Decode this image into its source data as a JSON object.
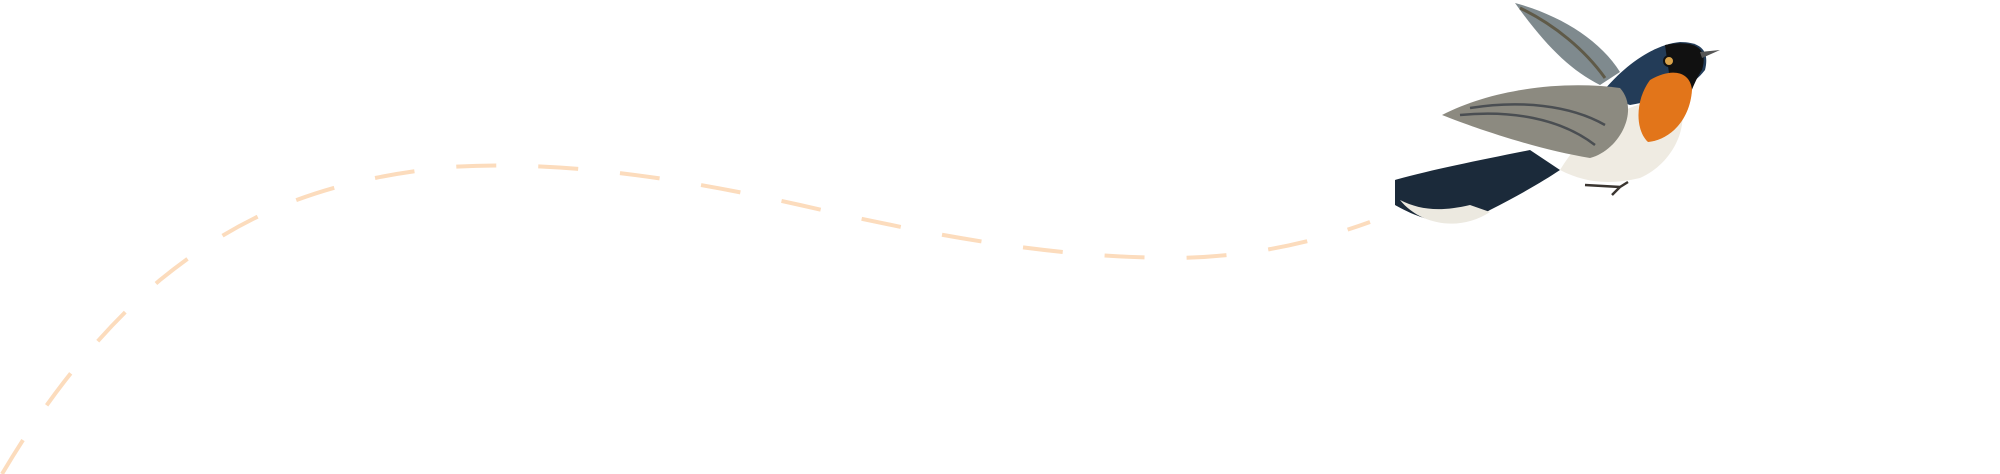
{
  "illustration": {
    "subject": "bird-illustration",
    "colors": {
      "flight_path": "#fcdcbd",
      "bird_back": "#1f3550",
      "bird_throat": "#e2751a",
      "bird_belly": "#f1ede4",
      "bird_wing": "#8c8a80"
    }
  }
}
